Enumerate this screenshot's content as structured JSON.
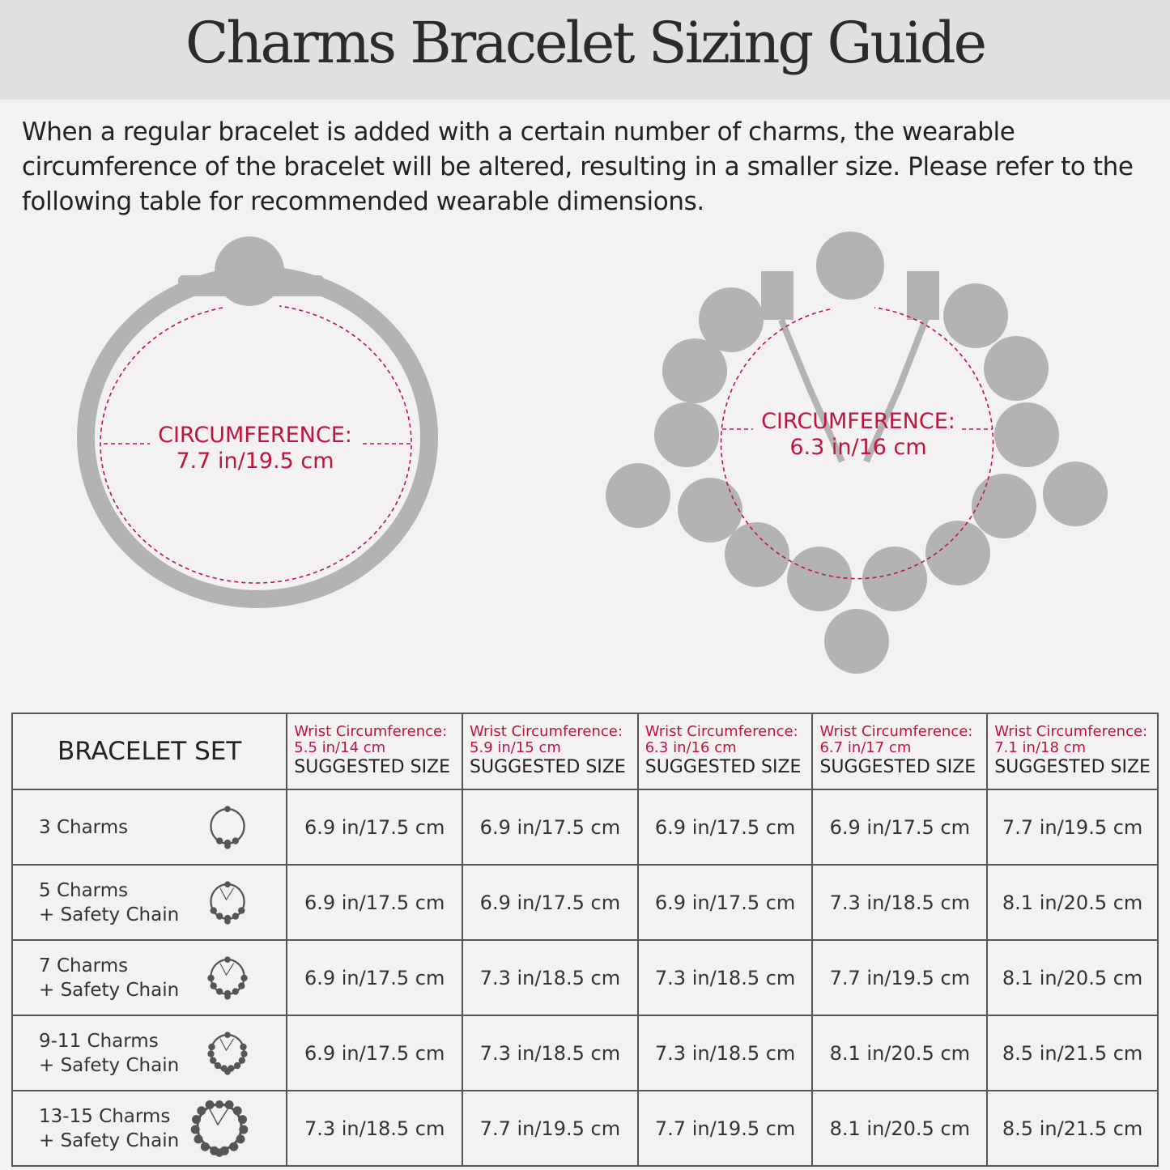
{
  "title": "Charms Bracelet Sizing Guide",
  "intro": "When a regular bracelet is added with a certain number of charms, the wearable circumference of the bracelet will be altered, resulting in a smaller size. Please refer to the following table for recommended wearable dimensions.",
  "colors": {
    "accent": "#c0143c",
    "bead": "#b3b3b3",
    "title_band": "#e0e0e0"
  },
  "plain_bracelet": {
    "label": "CIRCUMFERENCE:",
    "value": "7.7 in/19.5 cm"
  },
  "charm_bracelet": {
    "label": "CIRCUMFERENCE:",
    "value": "6.3 in/16 cm"
  },
  "table": {
    "set_header": "BRACELET SET",
    "columns": [
      {
        "wrist_label": "Wrist Circumference:",
        "wrist": "5.5 in/14 cm",
        "suggested": "SUGGESTED SIZE"
      },
      {
        "wrist_label": "Wrist Circumference:",
        "wrist": "5.9 in/15 cm",
        "suggested": "SUGGESTED SIZE"
      },
      {
        "wrist_label": "Wrist Circumference:",
        "wrist": "6.3 in/16 cm",
        "suggested": "SUGGESTED SIZE"
      },
      {
        "wrist_label": "Wrist Circumference:",
        "wrist": "6.7 in/17 cm",
        "suggested": "SUGGESTED SIZE"
      },
      {
        "wrist_label": "Wrist Circumference:",
        "wrist": "7.1 in/18 cm",
        "suggested": "SUGGESTED SIZE"
      }
    ],
    "rows": [
      {
        "name": "3 Charms",
        "sub": "",
        "icon": "bracelet-3-charms-icon",
        "sizes": [
          "6.9 in/17.5 cm",
          "6.9 in/17.5 cm",
          "6.9 in/17.5 cm",
          "6.9 in/17.5 cm",
          "7.7 in/19.5 cm"
        ]
      },
      {
        "name": "5 Charms",
        "sub": "+ Safety Chain",
        "icon": "bracelet-5-charms-icon",
        "sizes": [
          "6.9 in/17.5 cm",
          "6.9 in/17.5 cm",
          "6.9 in/17.5 cm",
          "7.3 in/18.5 cm",
          "8.1 in/20.5 cm"
        ]
      },
      {
        "name": "7 Charms",
        "sub": "+ Safety Chain",
        "icon": "bracelet-7-charms-icon",
        "sizes": [
          "6.9 in/17.5 cm",
          "7.3 in/18.5 cm",
          "7.3 in/18.5 cm",
          "7.7 in/19.5 cm",
          "8.1 in/20.5 cm"
        ]
      },
      {
        "name": "9-11 Charms",
        "sub": "+ Safety Chain",
        "icon": "bracelet-9-11-charms-icon",
        "sizes": [
          "6.9 in/17.5 cm",
          "7.3 in/18.5 cm",
          "7.3 in/18.5 cm",
          "8.1 in/20.5 cm",
          "8.5 in/21.5 cm"
        ]
      },
      {
        "name": "13-15 Charms",
        "sub": "+ Safety Chain",
        "icon": "bracelet-13-15-charms-icon",
        "sizes": [
          "7.3 in/18.5 cm",
          "7.7 in/19.5 cm",
          "7.7 in/19.5 cm",
          "8.1 in/20.5 cm",
          "8.5 in/21.5 cm"
        ]
      }
    ]
  }
}
